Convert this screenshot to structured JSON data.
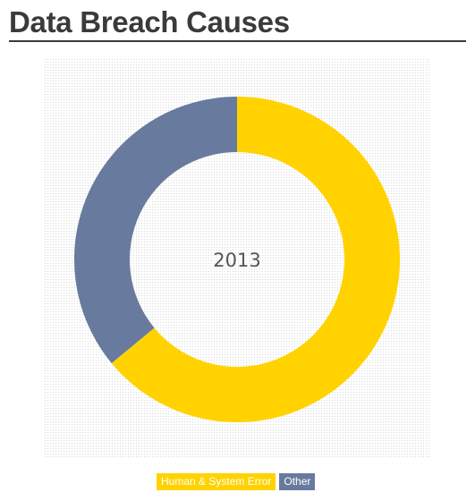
{
  "page": {
    "title": "Data Breach Causes"
  },
  "chart_data": {
    "type": "pie",
    "center_label": "2013",
    "series": [
      {
        "name": "Human & System Error",
        "value": 64,
        "color": "#ffd200"
      },
      {
        "name": "Other",
        "value": 36,
        "color": "#687b9e"
      }
    ],
    "legend_position": "bottom-center"
  }
}
